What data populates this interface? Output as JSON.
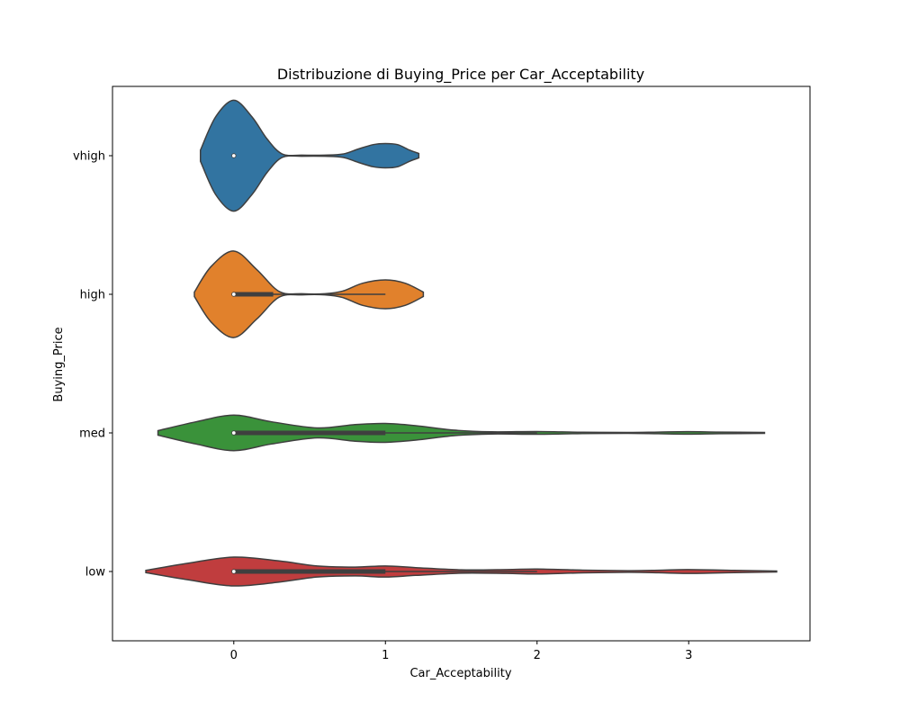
{
  "chart_data": {
    "type": "violin",
    "title": "Distribuzione di Buying_Price per Car_Acceptability",
    "xlabel": "Car_Acceptability",
    "ylabel": "Buying_Price",
    "xlim": [
      -0.8,
      3.8
    ],
    "x_ticks": [
      0,
      1,
      2,
      3
    ],
    "x_tick_labels": [
      "0",
      "1",
      "2",
      "3"
    ],
    "grid": false,
    "orientation": "horizontal",
    "categories": [
      "vhigh",
      "high",
      "med",
      "low"
    ],
    "series": [
      {
        "color": "#3274a1",
        "box": {
          "q1": 0,
          "median": 0,
          "q3": 0
        },
        "whisker": [
          0,
          0
        ],
        "density": [
          [
            -0.22,
            0.1
          ],
          [
            -0.12,
            0.7
          ],
          [
            0.0,
            1.0
          ],
          [
            0.12,
            0.7
          ],
          [
            0.22,
            0.3
          ],
          [
            0.32,
            0.03
          ],
          [
            0.45,
            0.01
          ],
          [
            0.6,
            0.01
          ],
          [
            0.72,
            0.03
          ],
          [
            0.82,
            0.12
          ],
          [
            0.92,
            0.2
          ],
          [
            1.0,
            0.22
          ],
          [
            1.08,
            0.2
          ],
          [
            1.16,
            0.1
          ],
          [
            1.22,
            0.04
          ]
        ]
      },
      {
        "color": "#e1812c",
        "box": {
          "q1": 0,
          "median": 0,
          "q3": 0.26
        },
        "whisker": [
          0,
          1
        ],
        "density": [
          [
            -0.26,
            0.04
          ],
          [
            -0.15,
            0.5
          ],
          [
            0.0,
            0.78
          ],
          [
            0.15,
            0.45
          ],
          [
            0.3,
            0.05
          ],
          [
            0.45,
            0.01
          ],
          [
            0.6,
            0.01
          ],
          [
            0.72,
            0.06
          ],
          [
            0.85,
            0.2
          ],
          [
            1.0,
            0.26
          ],
          [
            1.13,
            0.2
          ],
          [
            1.25,
            0.04
          ]
        ]
      },
      {
        "color": "#3a923a",
        "box": {
          "q1": 0,
          "median": 0,
          "q3": 1
        },
        "whisker": [
          0,
          2
        ],
        "density": [
          [
            -0.5,
            0.04
          ],
          [
            -0.25,
            0.2
          ],
          [
            0.0,
            0.32
          ],
          [
            0.25,
            0.2
          ],
          [
            0.55,
            0.09
          ],
          [
            0.8,
            0.15
          ],
          [
            1.0,
            0.17
          ],
          [
            1.2,
            0.13
          ],
          [
            1.45,
            0.05
          ],
          [
            1.7,
            0.02
          ],
          [
            2.0,
            0.025
          ],
          [
            2.3,
            0.012
          ],
          [
            2.6,
            0.008
          ],
          [
            2.8,
            0.015
          ],
          [
            3.0,
            0.022
          ],
          [
            3.2,
            0.015
          ],
          [
            3.5,
            0.008
          ]
        ]
      },
      {
        "color": "#c03d3e",
        "box": {
          "q1": 0,
          "median": 0,
          "q3": 1
        },
        "whisker": [
          0,
          2
        ],
        "density": [
          [
            -0.58,
            0.02
          ],
          [
            -0.3,
            0.15
          ],
          [
            0.0,
            0.26
          ],
          [
            0.3,
            0.19
          ],
          [
            0.55,
            0.1
          ],
          [
            0.8,
            0.08
          ],
          [
            1.0,
            0.1
          ],
          [
            1.2,
            0.07
          ],
          [
            1.5,
            0.03
          ],
          [
            1.8,
            0.035
          ],
          [
            2.0,
            0.045
          ],
          [
            2.3,
            0.025
          ],
          [
            2.6,
            0.015
          ],
          [
            2.8,
            0.022
          ],
          [
            3.0,
            0.035
          ],
          [
            3.3,
            0.02
          ],
          [
            3.58,
            0.008
          ]
        ]
      }
    ]
  }
}
